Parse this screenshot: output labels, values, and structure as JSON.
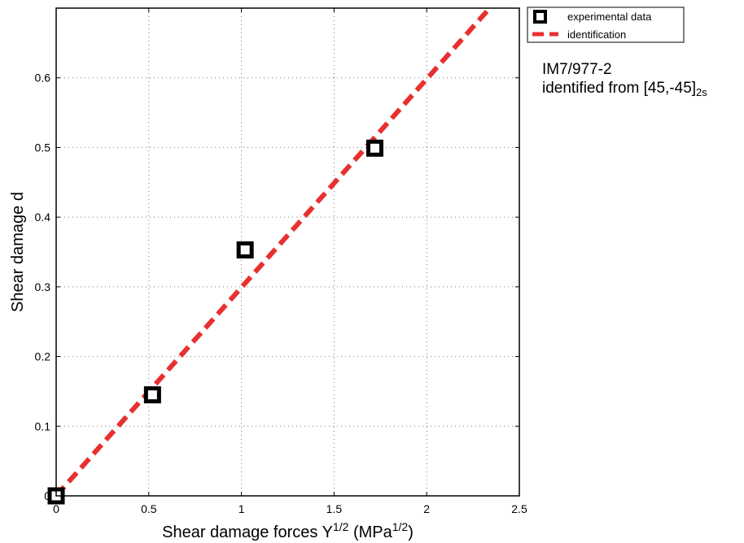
{
  "chart_data": {
    "type": "scatter",
    "xlabel": "Shear damage forces",
    "xlabel_symbol": "Y",
    "xlabel_exp": "1/2",
    "xlabel_unit": "(MPa",
    "xlabel_unit_exp": "1/2",
    "xlabel_close": ")",
    "ylabel": "Shear damage d",
    "xlim": [
      0,
      2.5
    ],
    "ylim": [
      0,
      0.7
    ],
    "xticks": [
      "0",
      "0.5",
      "1",
      "1.5",
      "2",
      "2.5"
    ],
    "yticks": [
      "0",
      "0.1",
      "0.2",
      "0.3",
      "0.4",
      "0.5",
      "0.6"
    ],
    "grid": true,
    "legend_position": "outside-top-right",
    "series": [
      {
        "name": "experimental data",
        "type": "scatter",
        "marker": "square",
        "color": "#000000",
        "x": [
          0,
          0.52,
          1.02,
          1.72
        ],
        "y": [
          0.0,
          0.145,
          0.353,
          0.499
        ]
      },
      {
        "name": "identification",
        "type": "line",
        "style": "dashed",
        "color": "#e83030",
        "x": [
          0,
          2.34
        ],
        "y": [
          0,
          0.7
        ]
      }
    ],
    "annotation": {
      "line1": "IM7/977-2",
      "line2": "identified from [45,-45]",
      "line2_sub": "2s"
    }
  }
}
